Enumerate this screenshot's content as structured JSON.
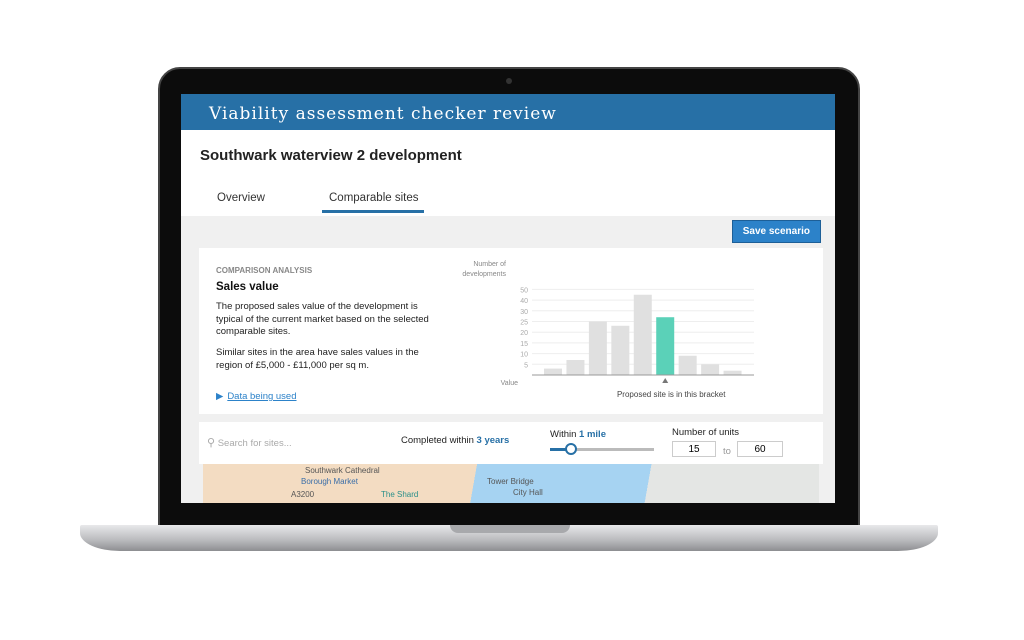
{
  "app": {
    "title": "Viability assessment checker review"
  },
  "page": {
    "title": "Southwark waterview 2 development"
  },
  "tabs": [
    {
      "label": "Overview",
      "active": false
    },
    {
      "label": "Comparable sites",
      "active": true
    }
  ],
  "toolbar": {
    "save_label": "Save scenario"
  },
  "analysis": {
    "section_label": "COMPARISON ANALYSIS",
    "heading": "Sales value",
    "para1": "The proposed sales value of the development is typical of the current market based on the selected comparable sites.",
    "para2": "Similar sites in the area have sales values in the region of £5,000 - £11,000 per sq m.",
    "link": "Data being used"
  },
  "chart_data": {
    "type": "bar",
    "ylabel": "Number of developments",
    "xlabel": "Value",
    "yticks": [
      5,
      10,
      15,
      20,
      25,
      30,
      40,
      50
    ],
    "ylim": [
      0,
      50
    ],
    "values": [
      3,
      7,
      25,
      23,
      45,
      27,
      9,
      5,
      2
    ],
    "highlight_index": 5,
    "annotation": "Proposed site is in this bracket",
    "colors": {
      "bar": "#e0e0e0",
      "highlight": "#5bd1b8"
    },
    "grid": true
  },
  "filters": {
    "search_placeholder": "Search for sites...",
    "completed_prefix": "Completed within",
    "completed_value": "3 years",
    "distance_prefix": "Within",
    "distance_value": "1 mile",
    "distance_slider": 0.2,
    "units_label": "Number of units",
    "units_min": "15",
    "units_to": "to",
    "units_max": "60"
  },
  "map": {
    "labels": [
      "Southwark Cathedral",
      "Borough Market",
      "Tower Bridge",
      "City Hall",
      "The Shard",
      "A3200"
    ]
  },
  "colors": {
    "brand": "#2770a6",
    "accent": "#2c82c9",
    "highlight": "#5bd1b8"
  }
}
